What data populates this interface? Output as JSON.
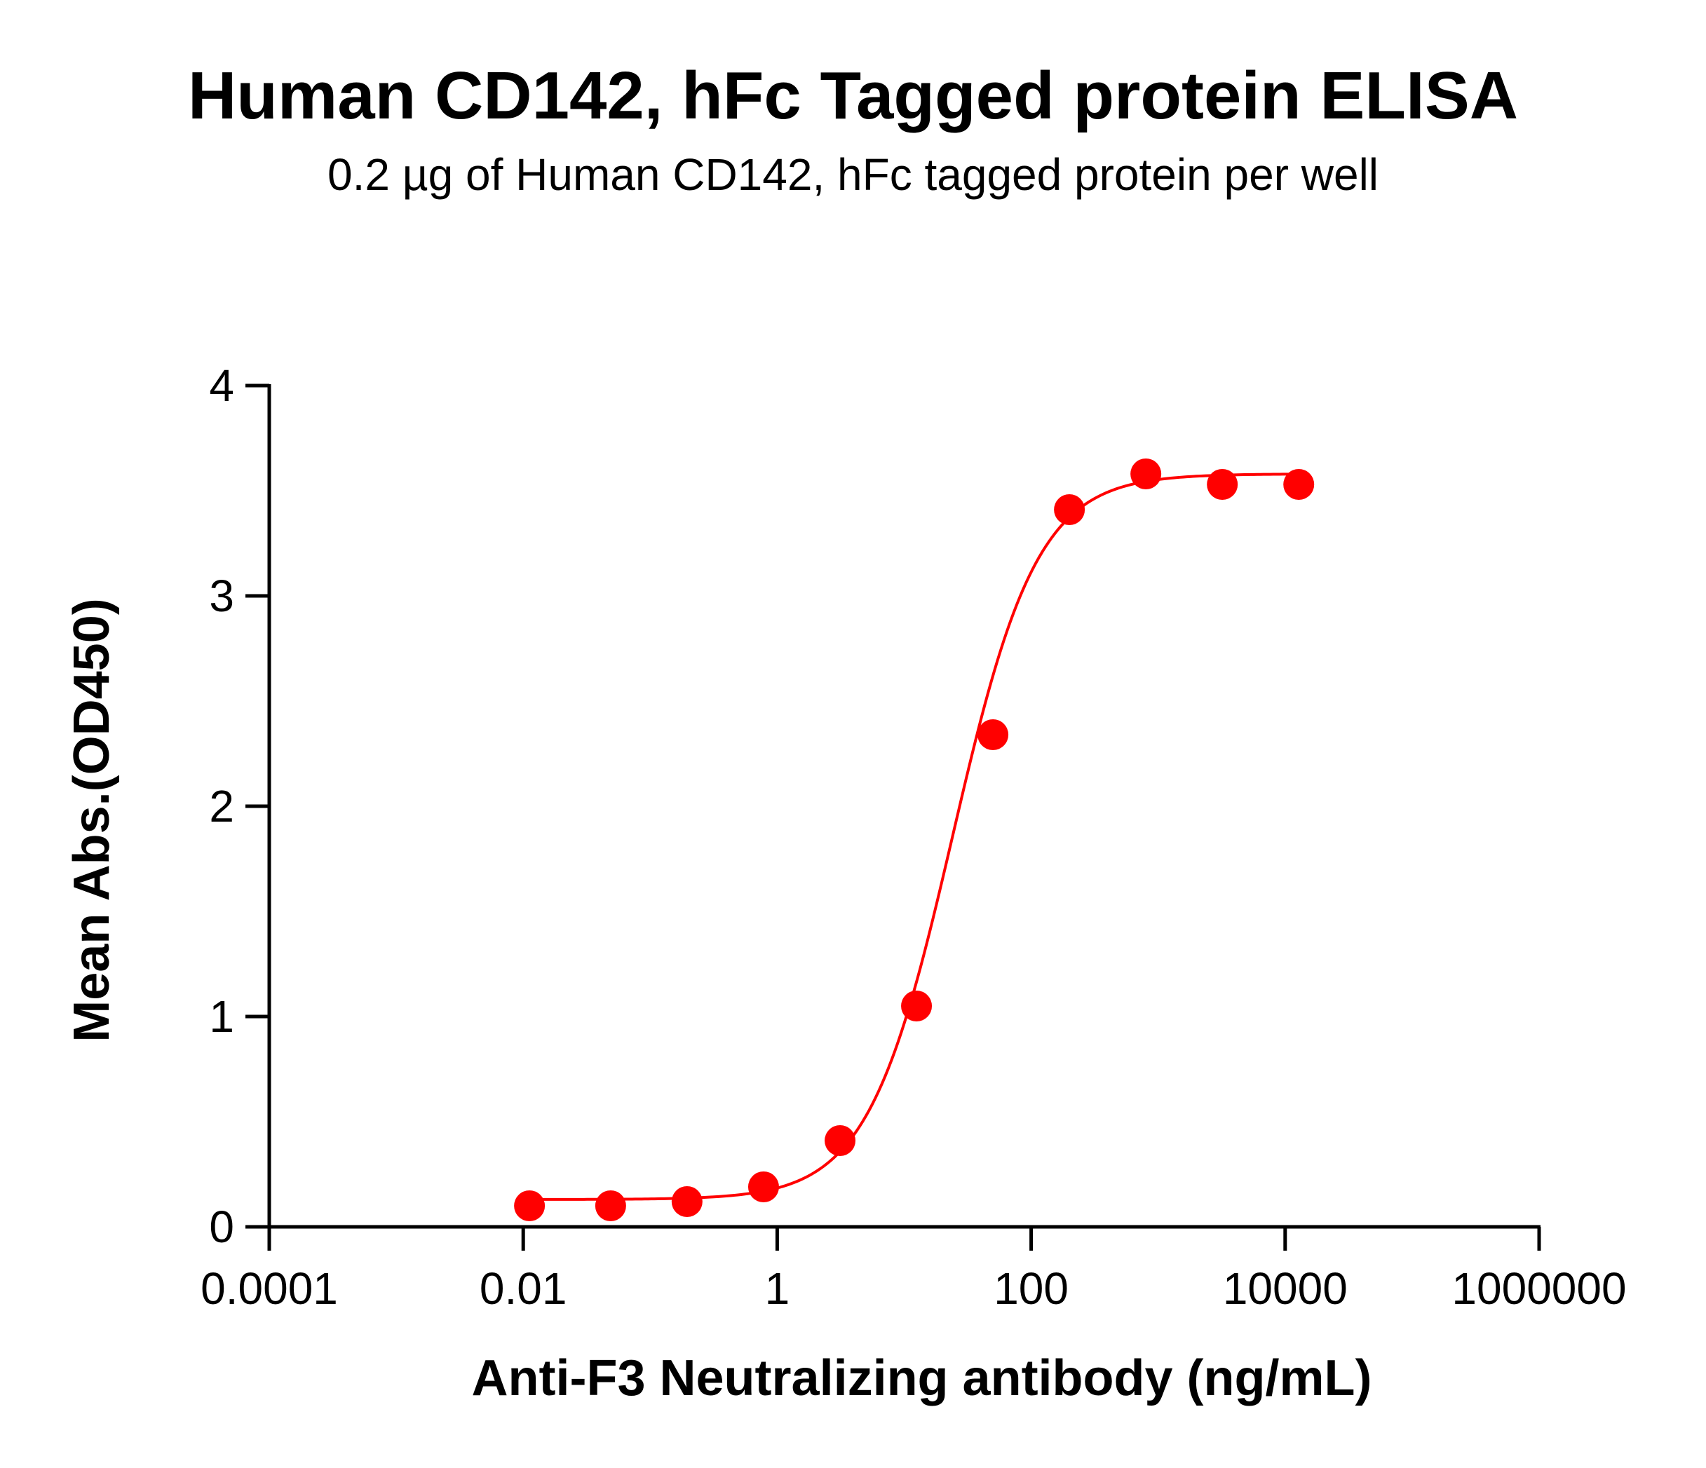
{
  "chart_data": {
    "type": "scatter",
    "title": "Human CD142, hFc Tagged protein ELISA",
    "subtitle": "0.2 µg of Human CD142, hFc tagged protein per well",
    "xlabel": "Anti-F3 Neutralizing antibody (ng/mL)",
    "ylabel": "Mean Abs.(OD450)",
    "x_scale": "log",
    "xlim": [
      0.0001,
      1000000
    ],
    "ylim": [
      0,
      4
    ],
    "x_ticks": [
      0.0001,
      0.01,
      1,
      100,
      10000,
      1000000
    ],
    "x_tick_labels": [
      "0.0001",
      "0.01",
      "1",
      "100",
      "10000",
      "1000000"
    ],
    "y_ticks": [
      0,
      1,
      2,
      3,
      4
    ],
    "y_tick_labels": [
      "0",
      "1",
      "2",
      "3",
      "4"
    ],
    "grid": false,
    "legend": "none",
    "color": "#ff0000",
    "series": [
      {
        "x": [
          0.0112,
          0.0488,
          0.195,
          0.781,
          3.125,
          12.5,
          50,
          200,
          800,
          3200,
          12800
        ],
        "y": [
          0.1,
          0.1,
          0.12,
          0.19,
          0.41,
          1.05,
          2.34,
          3.41,
          3.58,
          3.53,
          3.53
        ]
      }
    ],
    "fit_curve": {
      "model": "4PL",
      "bottom": 0.13,
      "top": 3.58,
      "ec50": 24,
      "hill": 1.3
    }
  }
}
